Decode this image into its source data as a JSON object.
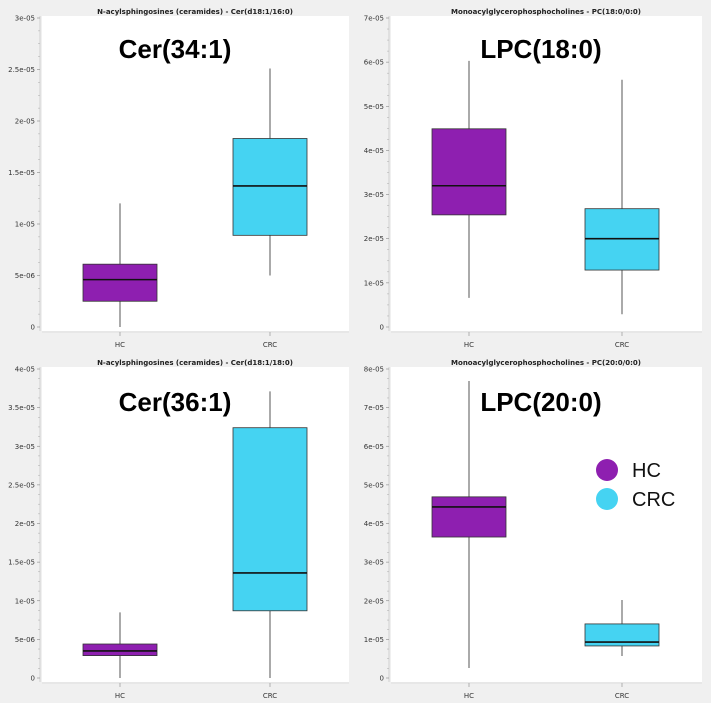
{
  "chart_data": [
    {
      "type": "box",
      "title": "N-acylsphingosines (ceramides) - Cer(d18:1/16:0)",
      "annotation": "Cer(34:1)",
      "categories": [
        "HC",
        "CRC"
      ],
      "ylim": [
        0,
        3e-05
      ],
      "yticks": [
        "0",
        "5e-06",
        "1e-05",
        "1.5e-05",
        "2e-05",
        "2.5e-05",
        "3e-05"
      ],
      "ytick_values": [
        0,
        5e-06,
        1e-05,
        1.5e-05,
        2e-05,
        2.5e-05,
        3e-05
      ],
      "series": [
        {
          "whisker_low": 0,
          "q1": 2.5e-06,
          "median": 4.6e-06,
          "q3": 6.1e-06,
          "whisker_high": 1.2e-05
        },
        {
          "whisker_low": 5e-06,
          "q1": 8.9e-06,
          "median": 1.37e-05,
          "q3": 1.83e-05,
          "whisker_high": 2.51e-05
        }
      ]
    },
    {
      "type": "box",
      "title": "Monoacylglycerophosphocholines - PC(18:0/0:0)",
      "annotation": "LPC(18:0)",
      "categories": [
        "HC",
        "CRC"
      ],
      "ylim": [
        0,
        7e-05
      ],
      "yticks": [
        "0",
        "1e-05",
        "2e-05",
        "3e-05",
        "4e-05",
        "5e-05",
        "6e-05",
        "7e-05"
      ],
      "ytick_values": [
        0,
        1e-05,
        2e-05,
        3e-05,
        4e-05,
        5e-05,
        6e-05,
        7e-05
      ],
      "series": [
        {
          "whisker_low": 6.6e-06,
          "q1": 2.54e-05,
          "median": 3.2e-05,
          "q3": 4.49e-05,
          "whisker_high": 6.03e-05
        },
        {
          "whisker_low": 2.9e-06,
          "q1": 1.29e-05,
          "median": 2e-05,
          "q3": 2.68e-05,
          "whisker_high": 5.6e-05
        }
      ]
    },
    {
      "type": "box",
      "title": "N-acylsphingosines (ceramides) - Cer(d18:1/18:0)",
      "annotation": "Cer(36:1)",
      "categories": [
        "HC",
        "CRC"
      ],
      "ylim": [
        0,
        4e-05
      ],
      "yticks": [
        "0",
        "5e-06",
        "1e-05",
        "1.5e-05",
        "2e-05",
        "2.5e-05",
        "3e-05",
        "3.5e-05",
        "4e-05"
      ],
      "ytick_values": [
        0,
        5e-06,
        1e-05,
        1.5e-05,
        2e-05,
        2.5e-05,
        3e-05,
        3.5e-05,
        4e-05
      ],
      "series": [
        {
          "whisker_low": 0,
          "q1": 2.9e-06,
          "median": 3.5e-06,
          "q3": 4.4e-06,
          "whisker_high": 8.5e-06
        },
        {
          "whisker_low": 0,
          "q1": 8.7e-06,
          "median": 1.36e-05,
          "q3": 3.24e-05,
          "whisker_high": 3.71e-05
        }
      ]
    },
    {
      "type": "box",
      "title": "Monoacylglycerophosphocholines - PC(20:0/0:0)",
      "annotation": "LPC(20:0)",
      "categories": [
        "HC",
        "CRC"
      ],
      "ylim": [
        0,
        8e-05
      ],
      "yticks": [
        "0",
        "1e-05",
        "2e-05",
        "3e-05",
        "4e-05",
        "5e-05",
        "6e-05",
        "7e-05",
        "8e-05"
      ],
      "ytick_values": [
        0,
        1e-05,
        2e-05,
        3e-05,
        4e-05,
        5e-05,
        6e-05,
        7e-05,
        8e-05
      ],
      "series": [
        {
          "whisker_low": 2.6e-06,
          "q1": 3.65e-05,
          "median": 4.43e-05,
          "q3": 4.69e-05,
          "whisker_high": 7.69e-05
        },
        {
          "whisker_low": 5.7e-06,
          "q1": 8.3e-06,
          "median": 9.3e-06,
          "q3": 1.4e-05,
          "whisker_high": 2.02e-05
        }
      ],
      "legend": {
        "position": "right",
        "entries": [
          "HC",
          "CRC"
        ]
      }
    }
  ],
  "colors": {
    "HC": "#8e1fb0",
    "CRC": "#45d3f2",
    "background": "#f0f0f0",
    "plot": "#ffffff"
  }
}
